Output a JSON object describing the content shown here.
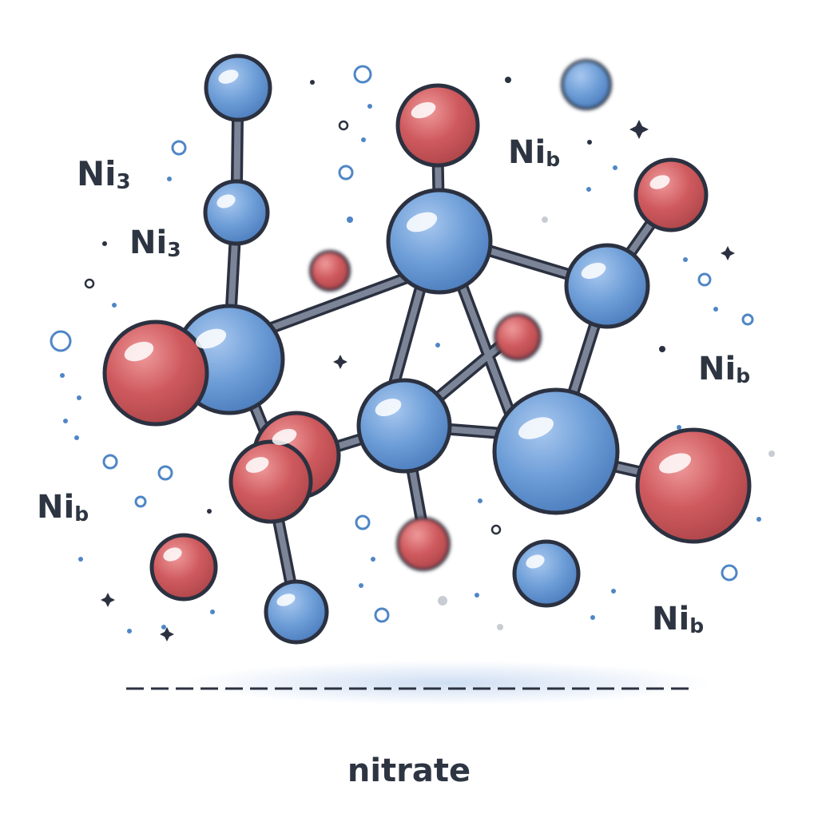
{
  "labels": [
    {
      "main": "Ni",
      "sub": "3"
    },
    {
      "main": "Ni",
      "sub": "3"
    },
    {
      "main": "Ni",
      "sub": "b"
    },
    {
      "main": "Ni",
      "sub": "b"
    },
    {
      "main": "Ni",
      "sub": "b"
    },
    {
      "main": "Ni",
      "sub": "b"
    }
  ],
  "caption": "nitrate",
  "colors": {
    "blue_atom": "#6f9fd8",
    "red_atom": "#cf5a5e",
    "outline": "#2b3140",
    "bond": "#7b8597",
    "text": "#2e3542"
  }
}
